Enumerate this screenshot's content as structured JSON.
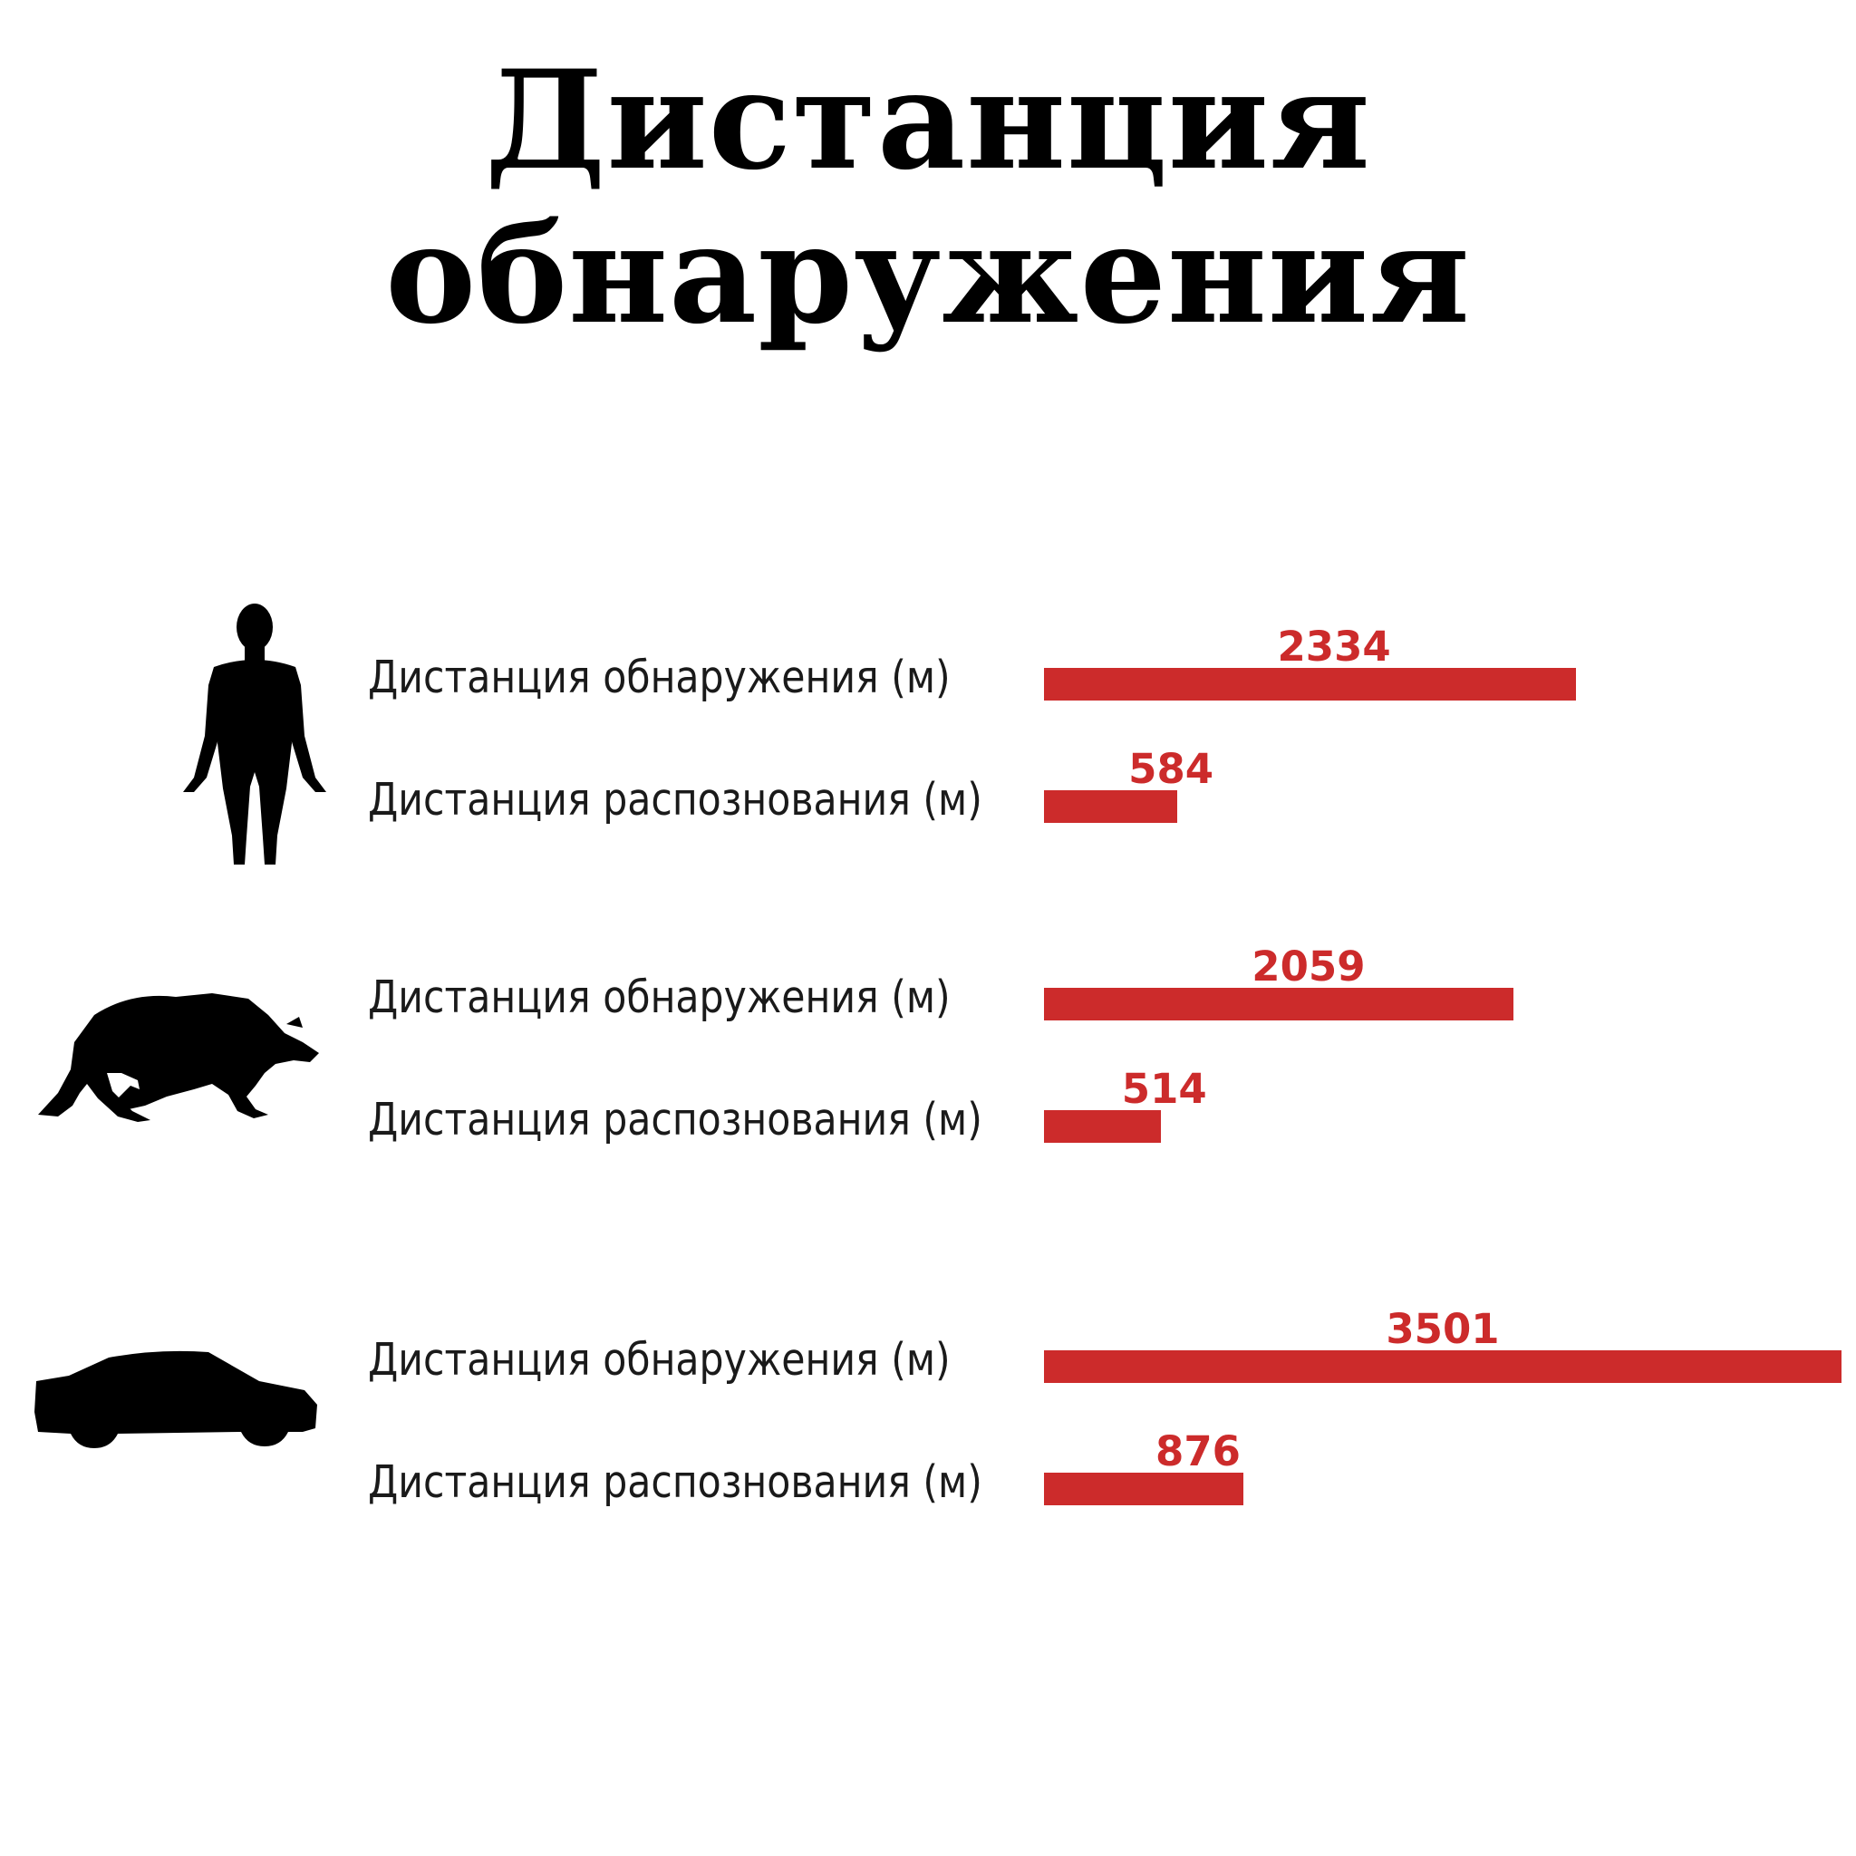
{
  "title": {
    "line1": "Дистанция",
    "line2": "обнаружения"
  },
  "colors": {
    "bar": "#cc2b2b",
    "value_text": "#cc2b2b",
    "title_text": "#000000",
    "label_text": "#1a1a1a"
  },
  "chart_data": {
    "type": "bar",
    "orientation": "horizontal",
    "title": "Дистанция обнаружения",
    "unit": "м",
    "max_value": 3501,
    "groups": [
      {
        "icon": "human-silhouette-icon",
        "rows": [
          {
            "label": "Дистанция обнаружения (м)",
            "value": 2334
          },
          {
            "label": "Дистанция распознования (м)",
            "value": 584
          }
        ]
      },
      {
        "icon": "boar-silhouette-icon",
        "rows": [
          {
            "label": "Дистанция обнаружения (м)",
            "value": 2059
          },
          {
            "label": "Дистанция распознования (м)",
            "value": 514
          }
        ]
      },
      {
        "icon": "car-silhouette-icon",
        "rows": [
          {
            "label": "Дистанция обнаружения (м)",
            "value": 3501
          },
          {
            "label": "Дистанция распознования (м)",
            "value": 876
          }
        ]
      }
    ]
  }
}
